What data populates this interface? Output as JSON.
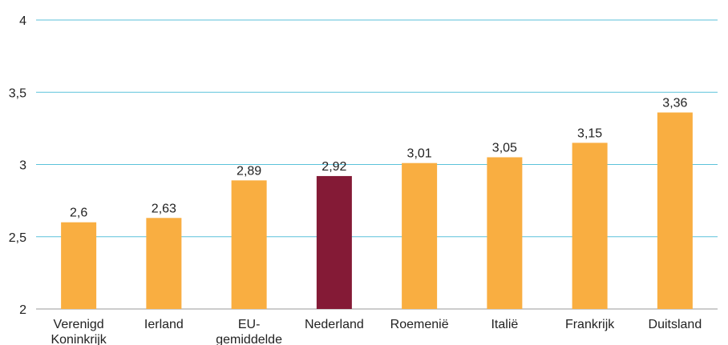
{
  "chart_data": {
    "type": "bar",
    "categories": [
      [
        "Verenigd",
        "Koninkrijk"
      ],
      [
        "Ierland"
      ],
      [
        "EU-",
        "gemiddelde"
      ],
      [
        "Nederland"
      ],
      [
        "Roemenië"
      ],
      [
        "Italië"
      ],
      [
        "Frankrijk"
      ],
      [
        "Duitsland"
      ]
    ],
    "values": [
      2.6,
      2.63,
      2.89,
      2.92,
      3.01,
      3.05,
      3.15,
      3.36
    ],
    "value_labels": [
      "2,6",
      "2,63",
      "2,89",
      "2,92",
      "3,01",
      "3,05",
      "3,15",
      "3,36"
    ],
    "highlight_index": 3,
    "ylim": [
      2,
      4
    ],
    "yticks": [
      2,
      2.5,
      3,
      3.5,
      4
    ],
    "ytick_labels": [
      "2",
      "2,5",
      "3",
      "3,5",
      "4"
    ],
    "grid": true,
    "title": "",
    "xlabel": "",
    "ylabel": "",
    "colors": {
      "bar": "#F9AE41",
      "highlight": "#841A36",
      "grid": "#5BC2DA",
      "axis": "#999999"
    }
  }
}
